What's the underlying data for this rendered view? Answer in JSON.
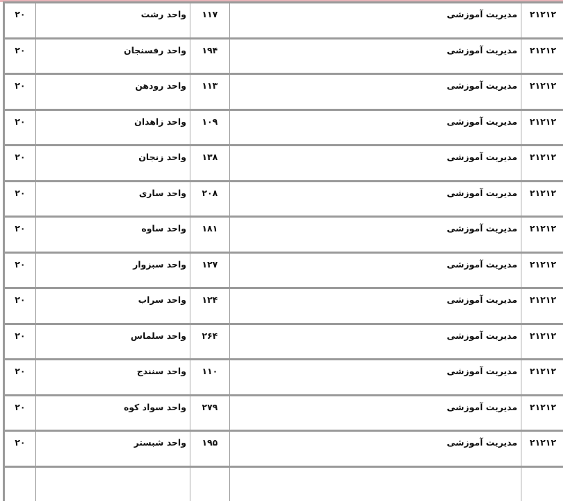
{
  "rows": [
    {
      "code": "۲۱۲۱۲",
      "field": "مدیریت آموزشی",
      "unit_code": "۱۱۷",
      "unit": "واحد رشت",
      "capacity": "۲۰"
    },
    {
      "code": "۲۱۲۱۲",
      "field": "مدیریت آموزشی",
      "unit_code": "۱۹۴",
      "unit": "واحد رفسنجان",
      "capacity": "۲۰"
    },
    {
      "code": "۲۱۲۱۲",
      "field": "مدیریت آموزشی",
      "unit_code": "۱۱۳",
      "unit": "واحد رودهن",
      "capacity": "۲۰"
    },
    {
      "code": "۲۱۲۱۲",
      "field": "مدیریت آموزشی",
      "unit_code": "۱۰۹",
      "unit": "واحد زاهدان",
      "capacity": "۲۰"
    },
    {
      "code": "۲۱۲۱۲",
      "field": "مدیریت آموزشی",
      "unit_code": "۱۳۸",
      "unit": "واحد زنجان",
      "capacity": "۲۰"
    },
    {
      "code": "۲۱۲۱۲",
      "field": "مدیریت آموزشی",
      "unit_code": "۲۰۸",
      "unit": "واحد ساری",
      "capacity": "۲۰"
    },
    {
      "code": "۲۱۲۱۲",
      "field": "مدیریت آموزشی",
      "unit_code": "۱۸۱",
      "unit": "واحد ساوه",
      "capacity": "۲۰"
    },
    {
      "code": "۲۱۲۱۲",
      "field": "مدیریت آموزشی",
      "unit_code": "۱۲۷",
      "unit": "واحد سبزوار",
      "capacity": "۲۰"
    },
    {
      "code": "۲۱۲۱۲",
      "field": "مدیریت آموزشی",
      "unit_code": "۱۲۴",
      "unit": "واحد سراب",
      "capacity": "۲۰"
    },
    {
      "code": "۲۱۲۱۲",
      "field": "مدیریت آموزشی",
      "unit_code": "۲۶۴",
      "unit": "واحد سلماس",
      "capacity": "۲۰"
    },
    {
      "code": "۲۱۲۱۲",
      "field": "مدیریت آموزشی",
      "unit_code": "۱۱۰",
      "unit": "واحد سنندج",
      "capacity": "۲۰"
    },
    {
      "code": "۲۱۲۱۲",
      "field": "مدیریت آموزشی",
      "unit_code": "۲۷۹",
      "unit": "واحد سواد کوه",
      "capacity": "۲۰"
    },
    {
      "code": "۲۱۲۱۲",
      "field": "مدیریت آموزشی",
      "unit_code": "۱۹۵",
      "unit": "واحد شبستر",
      "capacity": "۲۰"
    },
    {
      "code": "",
      "field": "",
      "unit_code": "",
      "unit": "",
      "capacity": ""
    }
  ]
}
